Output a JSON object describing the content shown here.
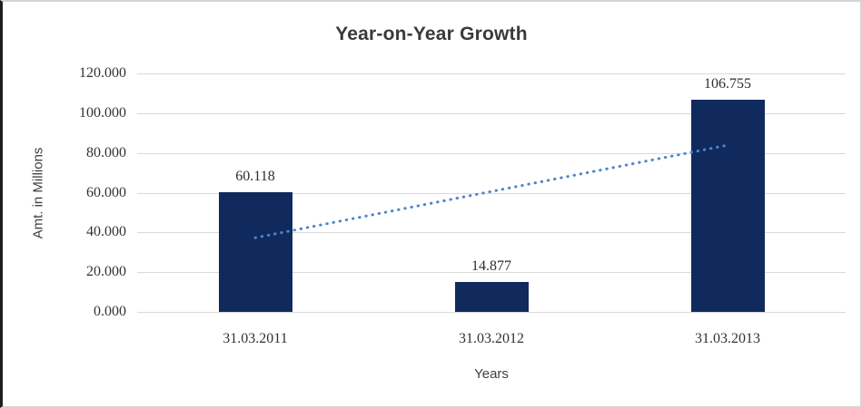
{
  "chart_data": {
    "type": "bar",
    "title": "Year-on-Year Growth",
    "xlabel": "Years",
    "ylabel": "Amt. in Millions",
    "categories": [
      "31.03.2011",
      "31.03.2012",
      "31.03.2013"
    ],
    "values": [
      60.118,
      14.877,
      106.755
    ],
    "value_labels": [
      "60.118",
      "14.877",
      "106.755"
    ],
    "ylim": [
      0,
      120
    ],
    "ytick_values": [
      120,
      100,
      80,
      60,
      40,
      20,
      0
    ],
    "ytick_labels": [
      "120.000",
      "100.000",
      "80.000",
      "60.000",
      "40.000",
      "20.000",
      "0.000"
    ],
    "grid": true,
    "legend": "none",
    "trendline": {
      "style": "dotted",
      "start_value": 37.3,
      "end_value": 83.9,
      "color": "#4e86c8"
    },
    "colors": {
      "bar": "#102a5e",
      "gridline": "#d9d9d9",
      "axis_line": "#bfbfbf",
      "text": "#323232"
    }
  }
}
